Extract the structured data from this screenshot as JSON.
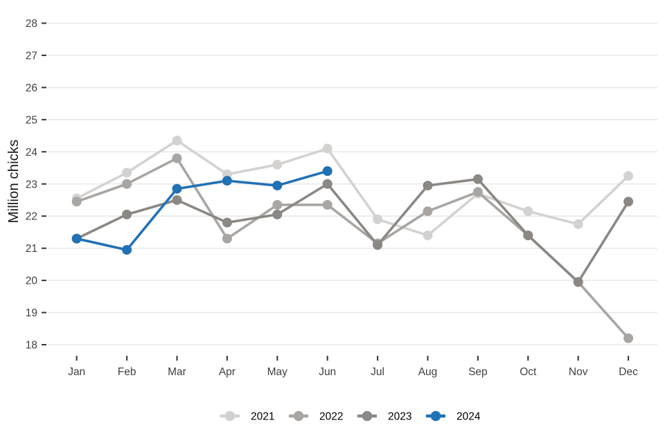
{
  "chart_data": {
    "type": "line",
    "title": "",
    "subtitle": "",
    "xlabel": "",
    "ylabel": "Million chicks",
    "categories": [
      "Jan",
      "Feb",
      "Mar",
      "Apr",
      "May",
      "Jun",
      "Jul",
      "Aug",
      "Sep",
      "Oct",
      "Nov",
      "Dec"
    ],
    "y_ticks": [
      18,
      19,
      20,
      21,
      22,
      23,
      24,
      25,
      26,
      27,
      28
    ],
    "ylim": [
      17.7,
      28.3
    ],
    "grid": "horizontal-only",
    "legend_position": "bottom-center",
    "series": [
      {
        "name": "2021",
        "color": "#d4d2d0",
        "values": [
          22.55,
          23.35,
          24.35,
          23.3,
          23.6,
          24.1,
          21.9,
          21.4,
          22.7,
          22.15,
          21.75,
          23.25
        ]
      },
      {
        "name": "2022",
        "color": "#a8a5a2",
        "values": [
          22.45,
          23.0,
          23.8,
          21.3,
          22.35,
          22.35,
          21.15,
          22.15,
          22.75,
          21.4,
          19.95,
          18.2
        ]
      },
      {
        "name": "2023",
        "color": "#8b8783",
        "values": [
          21.3,
          22.05,
          22.5,
          21.8,
          22.05,
          23.0,
          21.1,
          22.95,
          23.15,
          21.4,
          19.95,
          22.45
        ]
      },
      {
        "name": "2024",
        "color": "#2171b5",
        "values": [
          21.3,
          20.95,
          22.85,
          23.1,
          22.95,
          23.4,
          null,
          null,
          null,
          null,
          null,
          null
        ]
      }
    ]
  },
  "style": {
    "background": "#ffffff",
    "gridline_color": "#e8e8e8",
    "tick_mark_color": "#333333",
    "tick_label_color": "#404040",
    "axis_title_color": "#1a1a1a",
    "legend_text_color": "#000000"
  }
}
